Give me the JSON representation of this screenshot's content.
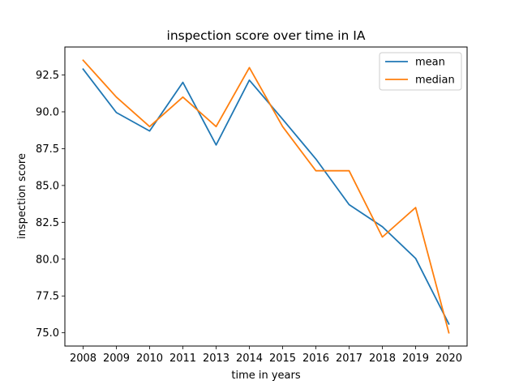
{
  "chart_data": {
    "type": "line",
    "title": "inspection score over time in IA",
    "xlabel": "time in years",
    "ylabel": "inspection score",
    "categories": [
      "2008",
      "2009",
      "2010",
      "2011",
      "2013",
      "2014",
      "2015",
      "2016",
      "2017",
      "2018",
      "2019",
      "2020"
    ],
    "series": [
      {
        "name": "mean",
        "color": "#1f77b4",
        "values": [
          92.9,
          89.95,
          88.7,
          92.0,
          87.75,
          92.15,
          89.5,
          86.8,
          83.7,
          82.2,
          80.05,
          75.6
        ]
      },
      {
        "name": "median",
        "color": "#ff7f0e",
        "values": [
          93.5,
          91.0,
          89.0,
          91.0,
          89.0,
          93.0,
          89.0,
          86.0,
          86.0,
          81.5,
          83.5,
          75.0
        ]
      }
    ],
    "ylim": [
      74.1,
      94.4
    ],
    "yticks": [
      "75.0",
      "77.5",
      "80.0",
      "82.5",
      "85.0",
      "87.5",
      "90.0",
      "92.5"
    ],
    "grid": false,
    "legend_position": "top-right"
  }
}
